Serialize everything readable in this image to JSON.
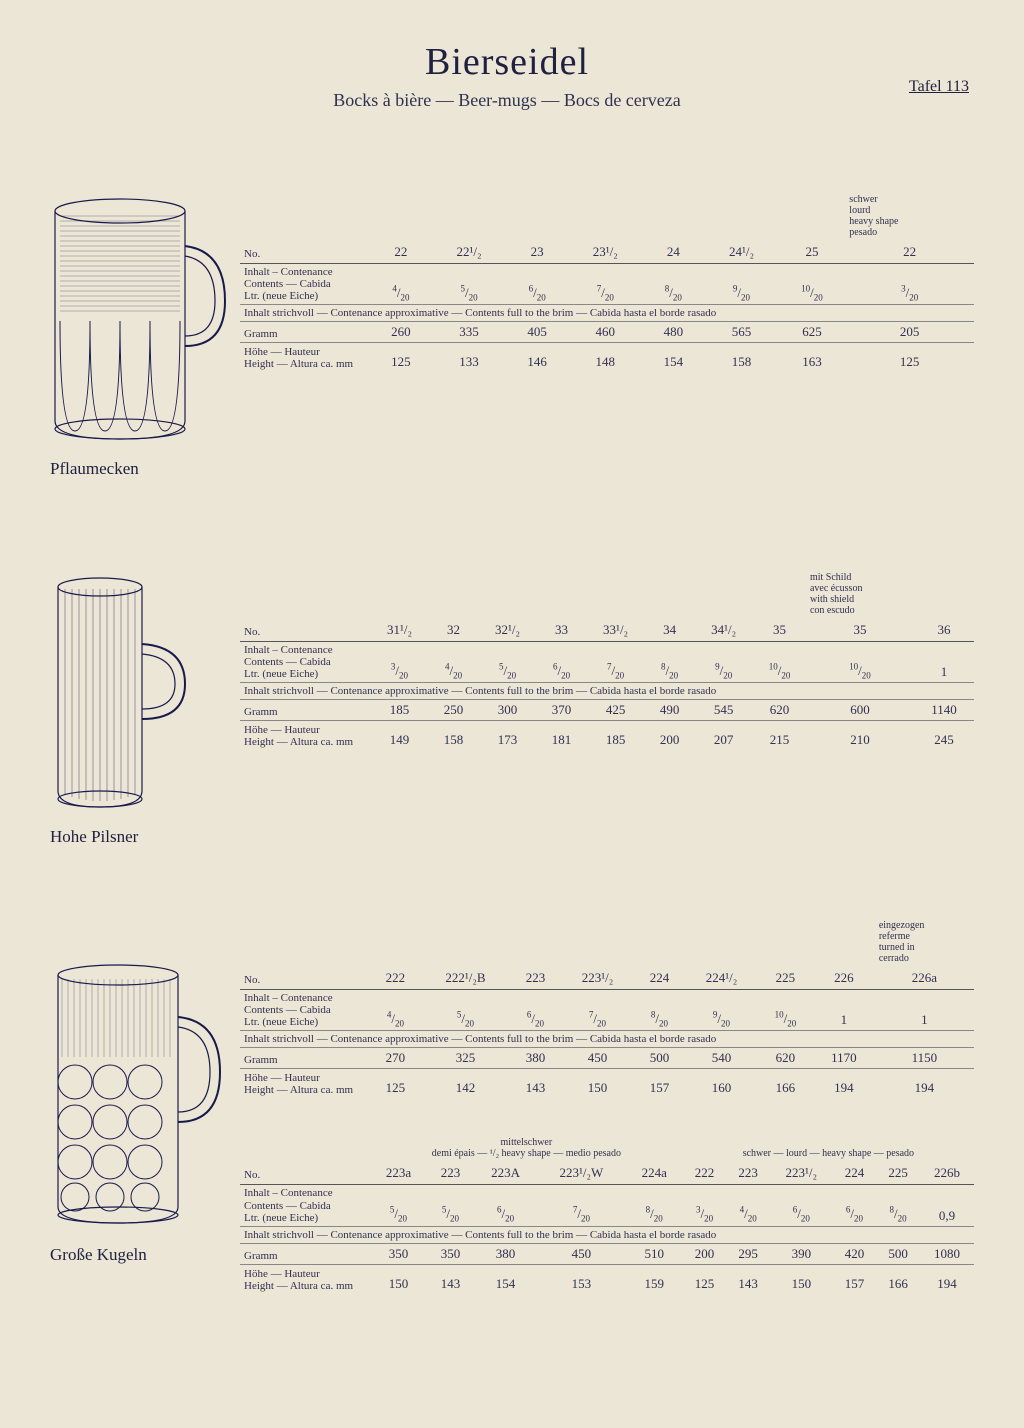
{
  "page": {
    "title": "Bierseidel",
    "subtitle": "Bocks à bière — Beer-mugs — Bocs de cerveza",
    "tafel": "Tafel 113"
  },
  "labels": {
    "no": "No.",
    "inhalt": "Inhalt – Contenance\nContents — Cabida\nLtr. (neue Eiche)",
    "brim": "Inhalt strichvoll — Contenance approximative — Contents full to the brim — Cabida hasta el borde rasado",
    "gramm": "Gramm",
    "hohe": "Höhe — Hauteur\nHeight — Altura ca. mm"
  },
  "section1": {
    "name": "Pflaumecken",
    "topnote": "schwer\nlourd\nheavy shape\npesado",
    "no": [
      "22",
      "22¹/₂",
      "23",
      "23¹/₂",
      "24",
      "24¹/₂",
      "25",
      "22"
    ],
    "inhalt": [
      "4/20",
      "5/20",
      "6/20",
      "7/20",
      "8/20",
      "9/20",
      "10/20",
      "3/20"
    ],
    "gramm": [
      "260",
      "335",
      "405",
      "460",
      "480",
      "565",
      "625",
      "205"
    ],
    "hohe": [
      "125",
      "133",
      "146",
      "148",
      "154",
      "158",
      "163",
      "125"
    ]
  },
  "section2": {
    "name": "Hohe Pilsner",
    "topnote": "mit Schild\navec écusson\nwith shield\ncon escudo",
    "no": [
      "31¹/₂",
      "32",
      "32¹/₂",
      "33",
      "33¹/₂",
      "34",
      "34¹/₂",
      "35",
      "35",
      "36"
    ],
    "inhalt": [
      "3/20",
      "4/20",
      "5/20",
      "6/20",
      "7/20",
      "8/20",
      "9/20",
      "10/20",
      "10/20",
      "1"
    ],
    "gramm": [
      "185",
      "250",
      "300",
      "370",
      "425",
      "490",
      "545",
      "620",
      "600",
      "1140"
    ],
    "hohe": [
      "149",
      "158",
      "173",
      "181",
      "185",
      "200",
      "207",
      "215",
      "210",
      "245"
    ]
  },
  "section3": {
    "name": "Große Kugeln",
    "topnote": "eingezogen\nreferme\nturned in\ncerrado",
    "no": [
      "222",
      "222¹/₂B",
      "223",
      "223¹/₂",
      "224",
      "224¹/₂",
      "225",
      "226",
      "226a"
    ],
    "inhalt": [
      "4/20",
      "5/20",
      "6/20",
      "7/20",
      "8/20",
      "9/20",
      "10/20",
      "1",
      "1"
    ],
    "gramm": [
      "270",
      "325",
      "380",
      "450",
      "500",
      "540",
      "620",
      "1170",
      "1150"
    ],
    "hohe": [
      "125",
      "142",
      "143",
      "150",
      "157",
      "160",
      "166",
      "194",
      "194"
    ]
  },
  "section4": {
    "leftnote": "mittelschwer\ndemi épais — ¹/₂ heavy shape — medio pesado",
    "rightnote": "schwer — lourd — heavy shape — pesado",
    "no": [
      "223a",
      "223",
      "223A",
      "223¹/₂W",
      "224a",
      "222",
      "223",
      "223¹/₂",
      "224",
      "225",
      "226b"
    ],
    "inhalt": [
      "5/20",
      "5/20",
      "6/20",
      "7/20",
      "8/20",
      "3/20",
      "4/20",
      "6/20",
      "6/20",
      "8/20",
      "0,9"
    ],
    "gramm": [
      "350",
      "350",
      "380",
      "450",
      "510",
      "200",
      "295",
      "390",
      "420",
      "500",
      "1080"
    ],
    "hohe": [
      "150",
      "143",
      "154",
      "153",
      "159",
      "125",
      "143",
      "150",
      "157",
      "166",
      "194"
    ]
  },
  "style": {
    "bg": "#ece6d6",
    "ink": "#2a2a40",
    "mug_stroke": "#1a1a4a"
  }
}
